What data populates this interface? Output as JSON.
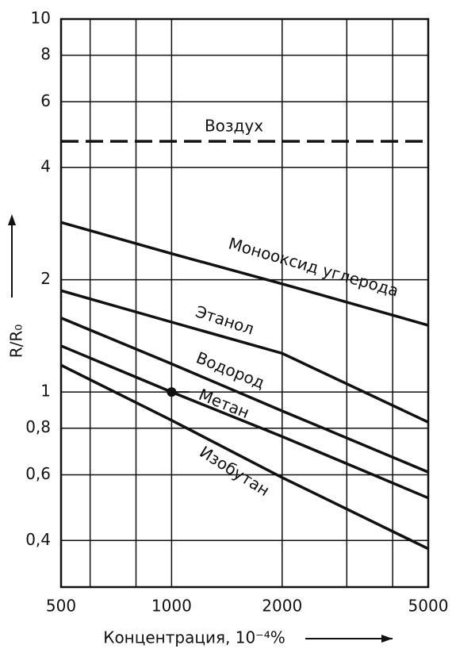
{
  "chart_data": {
    "type": "line",
    "x_label": "Концентрация, 10⁻⁴%",
    "y_label": "R/R₀",
    "x": [
      500,
      1000,
      2000,
      5000
    ],
    "series": [
      {
        "name": "Воздух",
        "color": "#111111",
        "dashed": true,
        "values": [
          4.7,
          4.7,
          4.7,
          4.7
        ]
      },
      {
        "name": "Монооксид углерода",
        "color": "#111111",
        "values": [
          2.85,
          2.35,
          1.95,
          1.51
        ]
      },
      {
        "name": "Этанол",
        "color": "#111111",
        "values": [
          1.87,
          1.54,
          1.27,
          0.83
        ]
      },
      {
        "name": "Водород",
        "color": "#111111",
        "values": [
          1.58,
          1.19,
          0.89,
          0.61
        ]
      },
      {
        "name": "Метан",
        "color": "#111111",
        "values": [
          1.33,
          1.0,
          0.76,
          0.52
        ]
      },
      {
        "name": "Изобутан",
        "color": "#111111",
        "values": [
          1.18,
          0.84,
          0.59,
          0.38
        ]
      }
    ],
    "marker": {
      "x": 1000,
      "y": 1
    },
    "xlim": [
      500,
      5000
    ],
    "ylim": [
      0.3,
      10
    ],
    "xscale": "log",
    "yscale": "log",
    "xticks": [
      500,
      1000,
      2000,
      5000
    ],
    "xgrid": [
      600,
      800,
      1000,
      2000,
      3000,
      4000
    ],
    "yticks": [
      10,
      8,
      6,
      4,
      2,
      1,
      {
        "value": 0.8,
        "label": "0,8"
      },
      {
        "value": 0.6,
        "label": "0,6"
      },
      {
        "value": 0.4,
        "label": "0,4"
      }
    ],
    "grid": true
  }
}
